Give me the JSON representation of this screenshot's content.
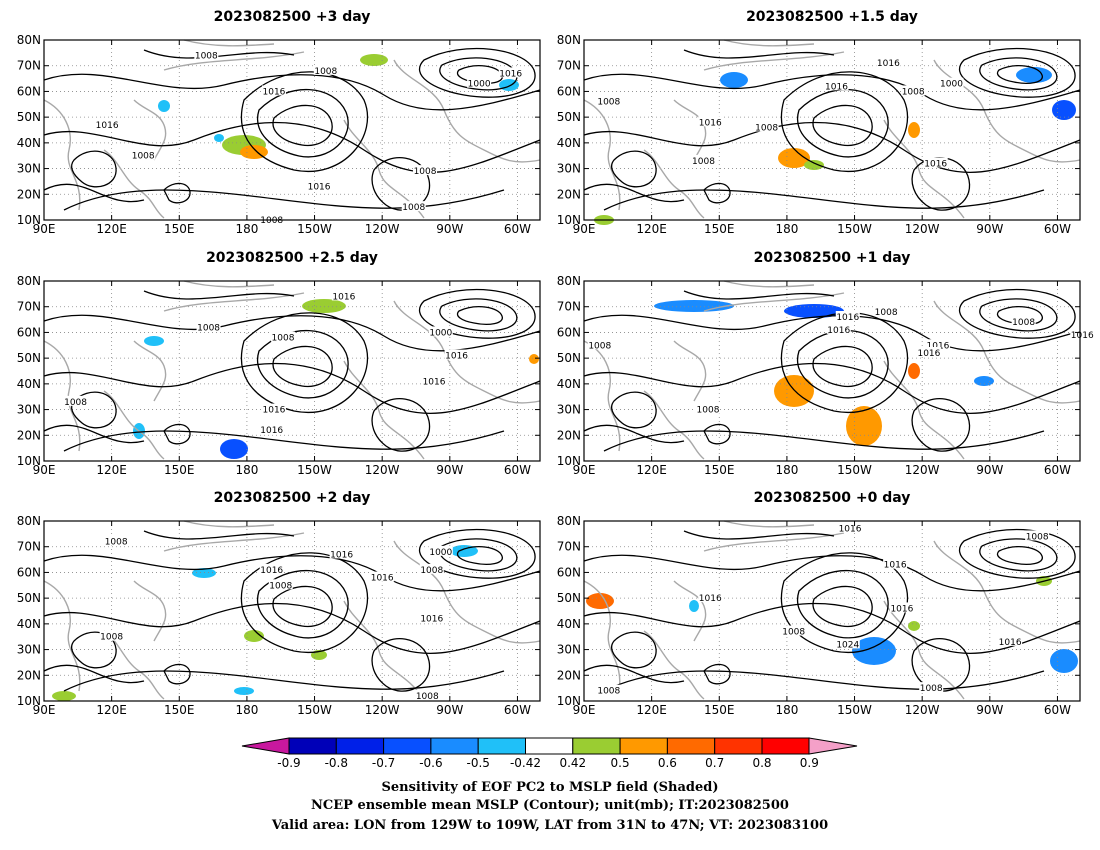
{
  "panels": [
    {
      "title": "2023082500 +3 day",
      "contour_labels": [
        {
          "text": "1008",
          "lon": 162,
          "lat": 74
        },
        {
          "text": "1008",
          "lon": 215,
          "lat": 68
        },
        {
          "text": "1000",
          "lon": 283,
          "lat": 63
        },
        {
          "text": "1016",
          "lon": 297,
          "lat": 67
        },
        {
          "text": "1016",
          "lon": 192,
          "lat": 60
        },
        {
          "text": "1016",
          "lon": 118,
          "lat": 47
        },
        {
          "text": "1008",
          "lon": 134,
          "lat": 35
        },
        {
          "text": "1016",
          "lon": 212,
          "lat": 23
        },
        {
          "text": "1008",
          "lon": 259,
          "lat": 29
        },
        {
          "text": "1008",
          "lon": 254,
          "lat": 15
        },
        {
          "text": "1008",
          "lon": 191,
          "lat": 10
        }
      ]
    },
    {
      "title": "2023082500 +1.5 day",
      "contour_labels": [
        {
          "text": "1016",
          "lon": 225,
          "lat": 71
        },
        {
          "text": "1000",
          "lon": 253,
          "lat": 63
        },
        {
          "text": "1008",
          "lon": 101,
          "lat": 56
        },
        {
          "text": "1016",
          "lon": 202,
          "lat": 62
        },
        {
          "text": "1008",
          "lon": 236,
          "lat": 60
        },
        {
          "text": "1016",
          "lon": 146,
          "lat": 48
        },
        {
          "text": "1008",
          "lon": 171,
          "lat": 46
        },
        {
          "text": "1008",
          "lon": 143,
          "lat": 33
        },
        {
          "text": "1016",
          "lon": 246,
          "lat": 32
        }
      ]
    },
    {
      "title": "2023082500 +2.5 day",
      "contour_labels": [
        {
          "text": "1008",
          "lon": 163,
          "lat": 62
        },
        {
          "text": "1008",
          "lon": 196,
          "lat": 58
        },
        {
          "text": "1016",
          "lon": 223,
          "lat": 74
        },
        {
          "text": "1000",
          "lon": 266,
          "lat": 60
        },
        {
          "text": "1016",
          "lon": 273,
          "lat": 51
        },
        {
          "text": "1016",
          "lon": 263,
          "lat": 41
        },
        {
          "text": "1008",
          "lon": 104,
          "lat": 33
        },
        {
          "text": "1016",
          "lon": 192,
          "lat": 30
        },
        {
          "text": "1016",
          "lon": 191,
          "lat": 22
        }
      ]
    },
    {
      "title": "2023082500 +1 day",
      "contour_labels": [
        {
          "text": "1008",
          "lon": 224,
          "lat": 68
        },
        {
          "text": "1016",
          "lon": 207,
          "lat": 66
        },
        {
          "text": "1016",
          "lon": 203,
          "lat": 61
        },
        {
          "text": "1008",
          "lon": 285,
          "lat": 64
        },
        {
          "text": "1016",
          "lon": 311,
          "lat": 59
        },
        {
          "text": "1016",
          "lon": 247,
          "lat": 55
        },
        {
          "text": "1016",
          "lon": 243,
          "lat": 52
        },
        {
          "text": "1008",
          "lon": 97,
          "lat": 55
        },
        {
          "text": "1008",
          "lon": 145,
          "lat": 30
        }
      ]
    },
    {
      "title": "2023082500 +2 day",
      "contour_labels": [
        {
          "text": "1008",
          "lon": 122,
          "lat": 72
        },
        {
          "text": "1016",
          "lon": 222,
          "lat": 67
        },
        {
          "text": "1000",
          "lon": 266,
          "lat": 68
        },
        {
          "text": "1016",
          "lon": 191,
          "lat": 61
        },
        {
          "text": "1008",
          "lon": 195,
          "lat": 55
        },
        {
          "text": "1016",
          "lon": 240,
          "lat": 58
        },
        {
          "text": "1008",
          "lon": 262,
          "lat": 61
        },
        {
          "text": "1016",
          "lon": 262,
          "lat": 42
        },
        {
          "text": "1008",
          "lon": 120,
          "lat": 35
        },
        {
          "text": "1008",
          "lon": 260,
          "lat": 12
        }
      ]
    },
    {
      "title": "2023082500 +0 day",
      "contour_labels": [
        {
          "text": "1016",
          "lon": 208,
          "lat": 77
        },
        {
          "text": "1008",
          "lon": 291,
          "lat": 74
        },
        {
          "text": "1016",
          "lon": 228,
          "lat": 63
        },
        {
          "text": "1016",
          "lon": 146,
          "lat": 50
        },
        {
          "text": "1016",
          "lon": 231,
          "lat": 46
        },
        {
          "text": "1008",
          "lon": 183,
          "lat": 37
        },
        {
          "text": "1024",
          "lon": 207,
          "lat": 32
        },
        {
          "text": "1016",
          "lon": 279,
          "lat": 33
        },
        {
          "text": "1008",
          "lon": 101,
          "lat": 14
        },
        {
          "text": "1008",
          "lon": 244,
          "lat": 15
        }
      ]
    }
  ],
  "axes": {
    "lon_range": [
      90,
      310
    ],
    "lat_range": [
      10,
      80
    ],
    "lon_ticks": [
      {
        "value": 90,
        "label": "90E"
      },
      {
        "value": 120,
        "label": "120E"
      },
      {
        "value": 150,
        "label": "150E"
      },
      {
        "value": 180,
        "label": "180"
      },
      {
        "value": 210,
        "label": "150W"
      },
      {
        "value": 240,
        "label": "120W"
      },
      {
        "value": 270,
        "label": "90W"
      },
      {
        "value": 300,
        "label": "60W"
      }
    ],
    "lat_ticks": [
      {
        "value": 10,
        "label": "10N"
      },
      {
        "value": 20,
        "label": "20N"
      },
      {
        "value": 30,
        "label": "30N"
      },
      {
        "value": 40,
        "label": "40N"
      },
      {
        "value": 50,
        "label": "50N"
      },
      {
        "value": 60,
        "label": "60N"
      },
      {
        "value": 70,
        "label": "70N"
      },
      {
        "value": 80,
        "label": "80N"
      }
    ]
  },
  "colorbar": {
    "labels": [
      "-0.9",
      "-0.8",
      "-0.7",
      "-0.6",
      "-0.5",
      "-0.42",
      "0.42",
      "0.5",
      "0.6",
      "0.7",
      "0.8",
      "0.9"
    ],
    "low_end_color": "#c8189e",
    "high_end_color": "#f4a0c8",
    "colors": [
      "#0000b8",
      "#0020e8",
      "#0850ff",
      "#1a8cff",
      "#20c0f8",
      "#ffffff",
      "#9acd32",
      "#ff9900",
      "#ff6a00",
      "#ff3300",
      "#ff0000"
    ]
  },
  "caption": {
    "line1": "Sensitivity of EOF PC2 to MSLP field (Shaded)",
    "line2": "NCEP ensemble mean MSLP (Contour); unit(mb); IT:2023082500",
    "line3": "Valid area: LON from 129W to 109W, LAT from 31N to 47N; VT: 2023083100"
  }
}
